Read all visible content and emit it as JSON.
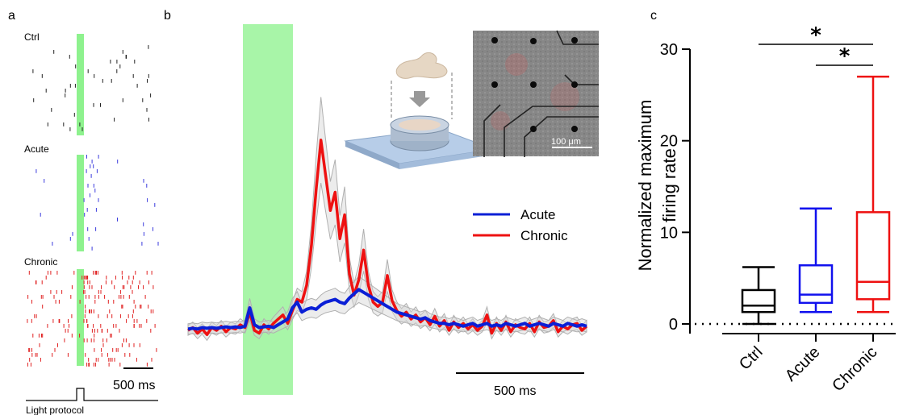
{
  "panel_a": {
    "letter": "a",
    "raster_labels": [
      "Ctrl",
      "Acute",
      "Chronic"
    ],
    "scale_bar_label": "500 ms",
    "protocol_label": "Light protocol",
    "colors": {
      "ctrl": "#222222",
      "acute": "#3b3bdd",
      "chronic": "#e02020",
      "light": "#8ef28e"
    }
  },
  "panel_b": {
    "letter": "b",
    "scale_bar_label": "500 ms",
    "inset_scale_label": "100 μm",
    "legend": [
      {
        "label": "Acute",
        "color": "#0a1fd6"
      },
      {
        "label": "Chronic",
        "color": "#ee1111"
      }
    ]
  },
  "panel_c": {
    "letter": "c",
    "significance_mark": "*"
  },
  "chart_data": [
    {
      "type": "line",
      "panel": "b",
      "series": [
        {
          "name": "Acute",
          "color": "#0a1fd6",
          "values": [
            0.1,
            0.15,
            0.1,
            0.2,
            0.15,
            0.2,
            0.15,
            0.2,
            0.25,
            0.2,
            0.25,
            0.2,
            0.3,
            1.6,
            0.4,
            0.2,
            0.25,
            0.3,
            0.2,
            0.4,
            0.6,
            0.8,
            1.6,
            2.0,
            1.3,
            1.5,
            1.6,
            1.5,
            1.8,
            2.0,
            2.1,
            2.2,
            2.0,
            1.9,
            2.3,
            2.6,
            2.9,
            2.7,
            2.5,
            2.3,
            2.1,
            1.9,
            1.7,
            1.5,
            1.3,
            1.2,
            1.1,
            1.0,
            0.9,
            0.8,
            0.9,
            0.7,
            0.6,
            0.5,
            0.5,
            0.4,
            0.5,
            0.4,
            0.3,
            0.4,
            0.5,
            0.3,
            0.4,
            0.5,
            0.3,
            0.4,
            0.3,
            0.5,
            0.4,
            0.3,
            0.4,
            0.5,
            0.3,
            0.4,
            0.5,
            0.4,
            0.3,
            0.5,
            0.4,
            0.3,
            0.5,
            0.4,
            0.3,
            0.4,
            0.3
          ]
        },
        {
          "name": "Chronic",
          "color": "#ee1111",
          "values": [
            0.0,
            0.2,
            -0.2,
            0.1,
            -0.3,
            0.2,
            0.0,
            0.3,
            -0.1,
            0.2,
            0.1,
            0.4,
            0.2,
            1.3,
            0.0,
            -0.2,
            0.4,
            0.1,
            0.5,
            0.8,
            1.1,
            0.5,
            1.4,
            2.2,
            2.0,
            3.2,
            6.0,
            10.0,
            13.5,
            11.0,
            8.5,
            9.8,
            6.5,
            8.2,
            4.0,
            2.5,
            3.6,
            5.7,
            3.2,
            2.0,
            1.7,
            2.0,
            3.9,
            2.1,
            1.4,
            1.0,
            1.3,
            0.8,
            1.1,
            0.6,
            0.9,
            0.4,
            1.0,
            0.3,
            0.7,
            0.0,
            0.6,
            0.2,
            0.5,
            0.1,
            0.4,
            0.0,
            0.3,
            1.1,
            -0.2,
            0.5,
            0.0,
            0.6,
            -0.1,
            0.4,
            0.2,
            0.1,
            0.5,
            -0.1,
            0.6,
            0.2,
            0.3,
            0.7,
            -0.1,
            0.3,
            0.1,
            0.4,
            0.5,
            0.0,
            0.3
          ]
        }
      ]
    },
    {
      "type": "box",
      "panel": "c",
      "ylabel": "Normalized maximum firing rate",
      "ylim": [
        0,
        30
      ],
      "yticks": [
        0,
        10,
        20,
        30
      ],
      "categories": [
        "Ctrl",
        "Acute",
        "Chronic"
      ],
      "boxes": [
        {
          "name": "Ctrl",
          "color": "#000000",
          "min": 0.0,
          "q1": 1.3,
          "median": 2.0,
          "q3": 3.7,
          "max": 6.2
        },
        {
          "name": "Acute",
          "color": "#1111ee",
          "min": 1.3,
          "q1": 2.3,
          "median": 3.2,
          "q3": 6.4,
          "max": 12.6
        },
        {
          "name": "Chronic",
          "color": "#ee1111",
          "min": 1.3,
          "q1": 2.7,
          "median": 4.6,
          "q3": 12.2,
          "max": 27.0
        }
      ],
      "significance": [
        {
          "from": "Ctrl",
          "to": "Chronic",
          "label": "*"
        },
        {
          "from": "Acute",
          "to": "Chronic",
          "label": "*"
        }
      ]
    }
  ]
}
